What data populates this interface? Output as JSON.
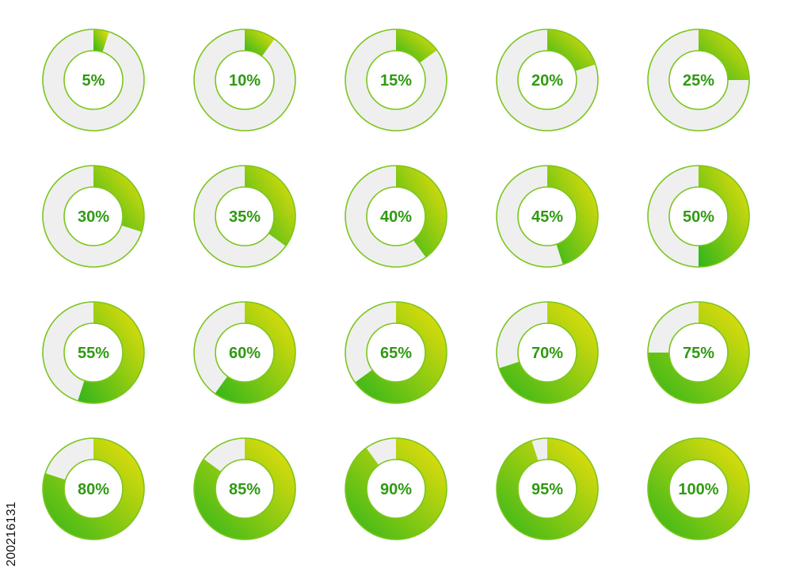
{
  "chart_data": {
    "type": "pie",
    "variant": "donut",
    "grid_layout": {
      "rows": 4,
      "columns": 5
    },
    "values": [
      5,
      10,
      15,
      20,
      25,
      30,
      35,
      40,
      45,
      50,
      55,
      60,
      65,
      70,
      75,
      80,
      85,
      90,
      95,
      100
    ],
    "labels": [
      "5%",
      "10%",
      "15%",
      "20%",
      "25%",
      "30%",
      "35%",
      "40%",
      "45%",
      "50%",
      "55%",
      "60%",
      "65%",
      "70%",
      "75%",
      "80%",
      "85%",
      "90%",
      "95%",
      "100%"
    ],
    "max": 100,
    "start": "top",
    "direction": "clockwise"
  },
  "colors": {
    "fill_light": "#f2e10a",
    "fill_dark": "#2fb51a",
    "track": "#efefef",
    "outline": "#7cc51d",
    "label": "#2f9a12"
  },
  "stock_id": "200216131"
}
